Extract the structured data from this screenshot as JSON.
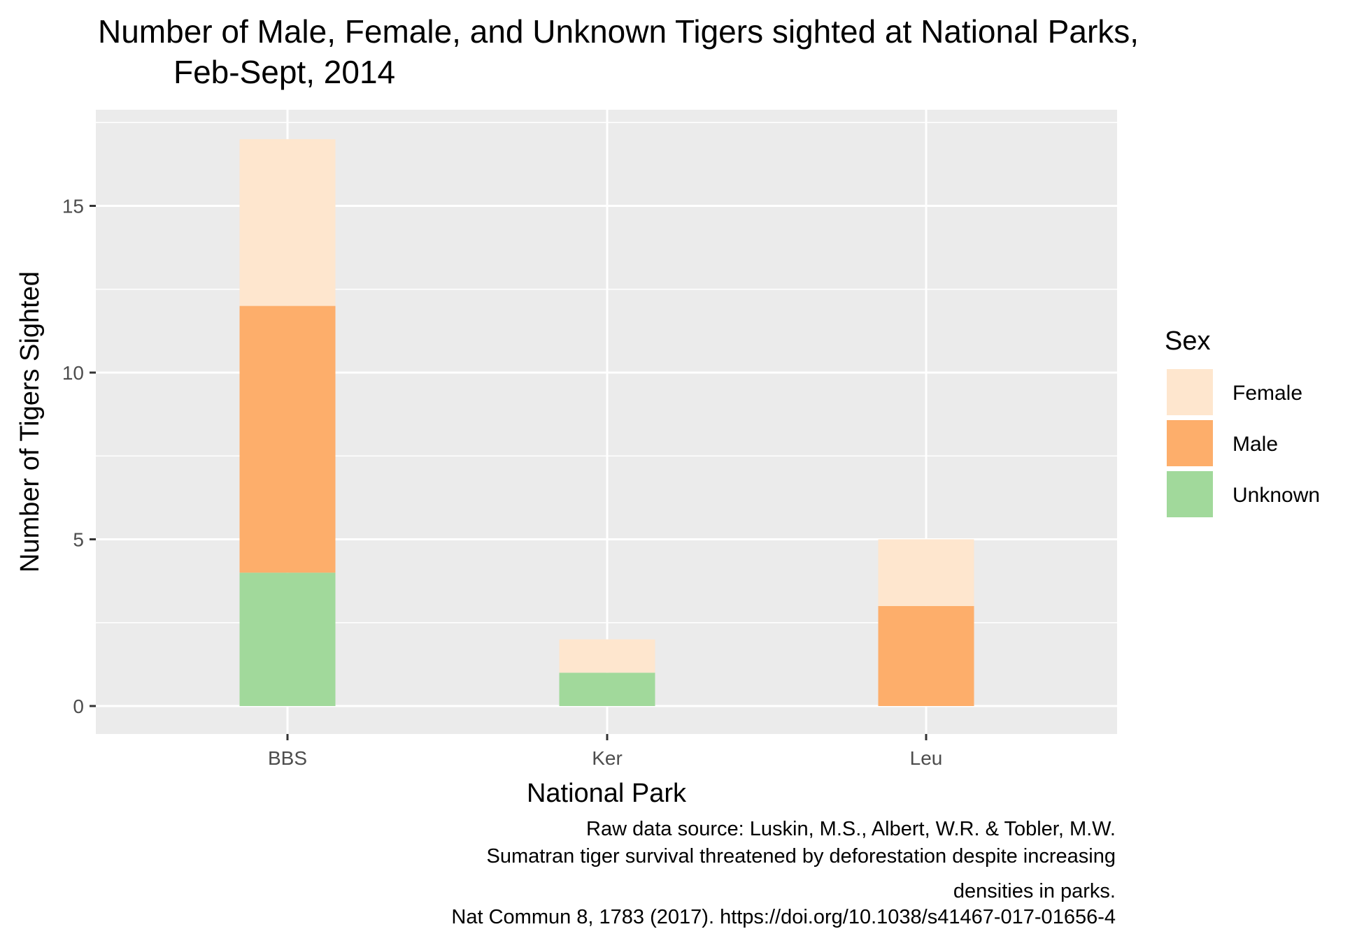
{
  "title_lines": [
    "Number of Male, Female, and Unknown Tigers sighted at National Parks,",
    "Feb-Sept, 2014"
  ],
  "caption_lines": [
    "Raw data source: Luskin, M.S., Albert, W.R. & Tobler, M.W.",
    "Sumatran tiger survival threatened by deforestation despite increasing",
    "densities in parks.",
    "Nat Commun 8, 1783 (2017). https://doi.org/10.1038/s41467-017-01656-4"
  ],
  "chart_data": {
    "type": "bar",
    "stacked": true,
    "categories": [
      "BBS",
      "Ker",
      "Leu"
    ],
    "xlabel": "National Park",
    "ylabel": "Number of Tigers Sighted",
    "ylim": [
      0,
      17
    ],
    "yticks": [
      0,
      5,
      10,
      15
    ],
    "grid": true,
    "legend": {
      "title": "Sex",
      "position": "right"
    },
    "series": [
      {
        "name": "Unknown",
        "values": [
          4,
          1,
          0
        ],
        "color": "#a1d99b"
      },
      {
        "name": "Male",
        "values": [
          8,
          0,
          3
        ],
        "color": "#fdae6b"
      },
      {
        "name": "Female",
        "values": [
          5,
          1,
          2
        ],
        "color": "#fee6ce"
      }
    ],
    "legend_order": [
      "Female",
      "Male",
      "Unknown"
    ],
    "panel_background": "#ebebeb",
    "grid_color": "#ffffff"
  }
}
